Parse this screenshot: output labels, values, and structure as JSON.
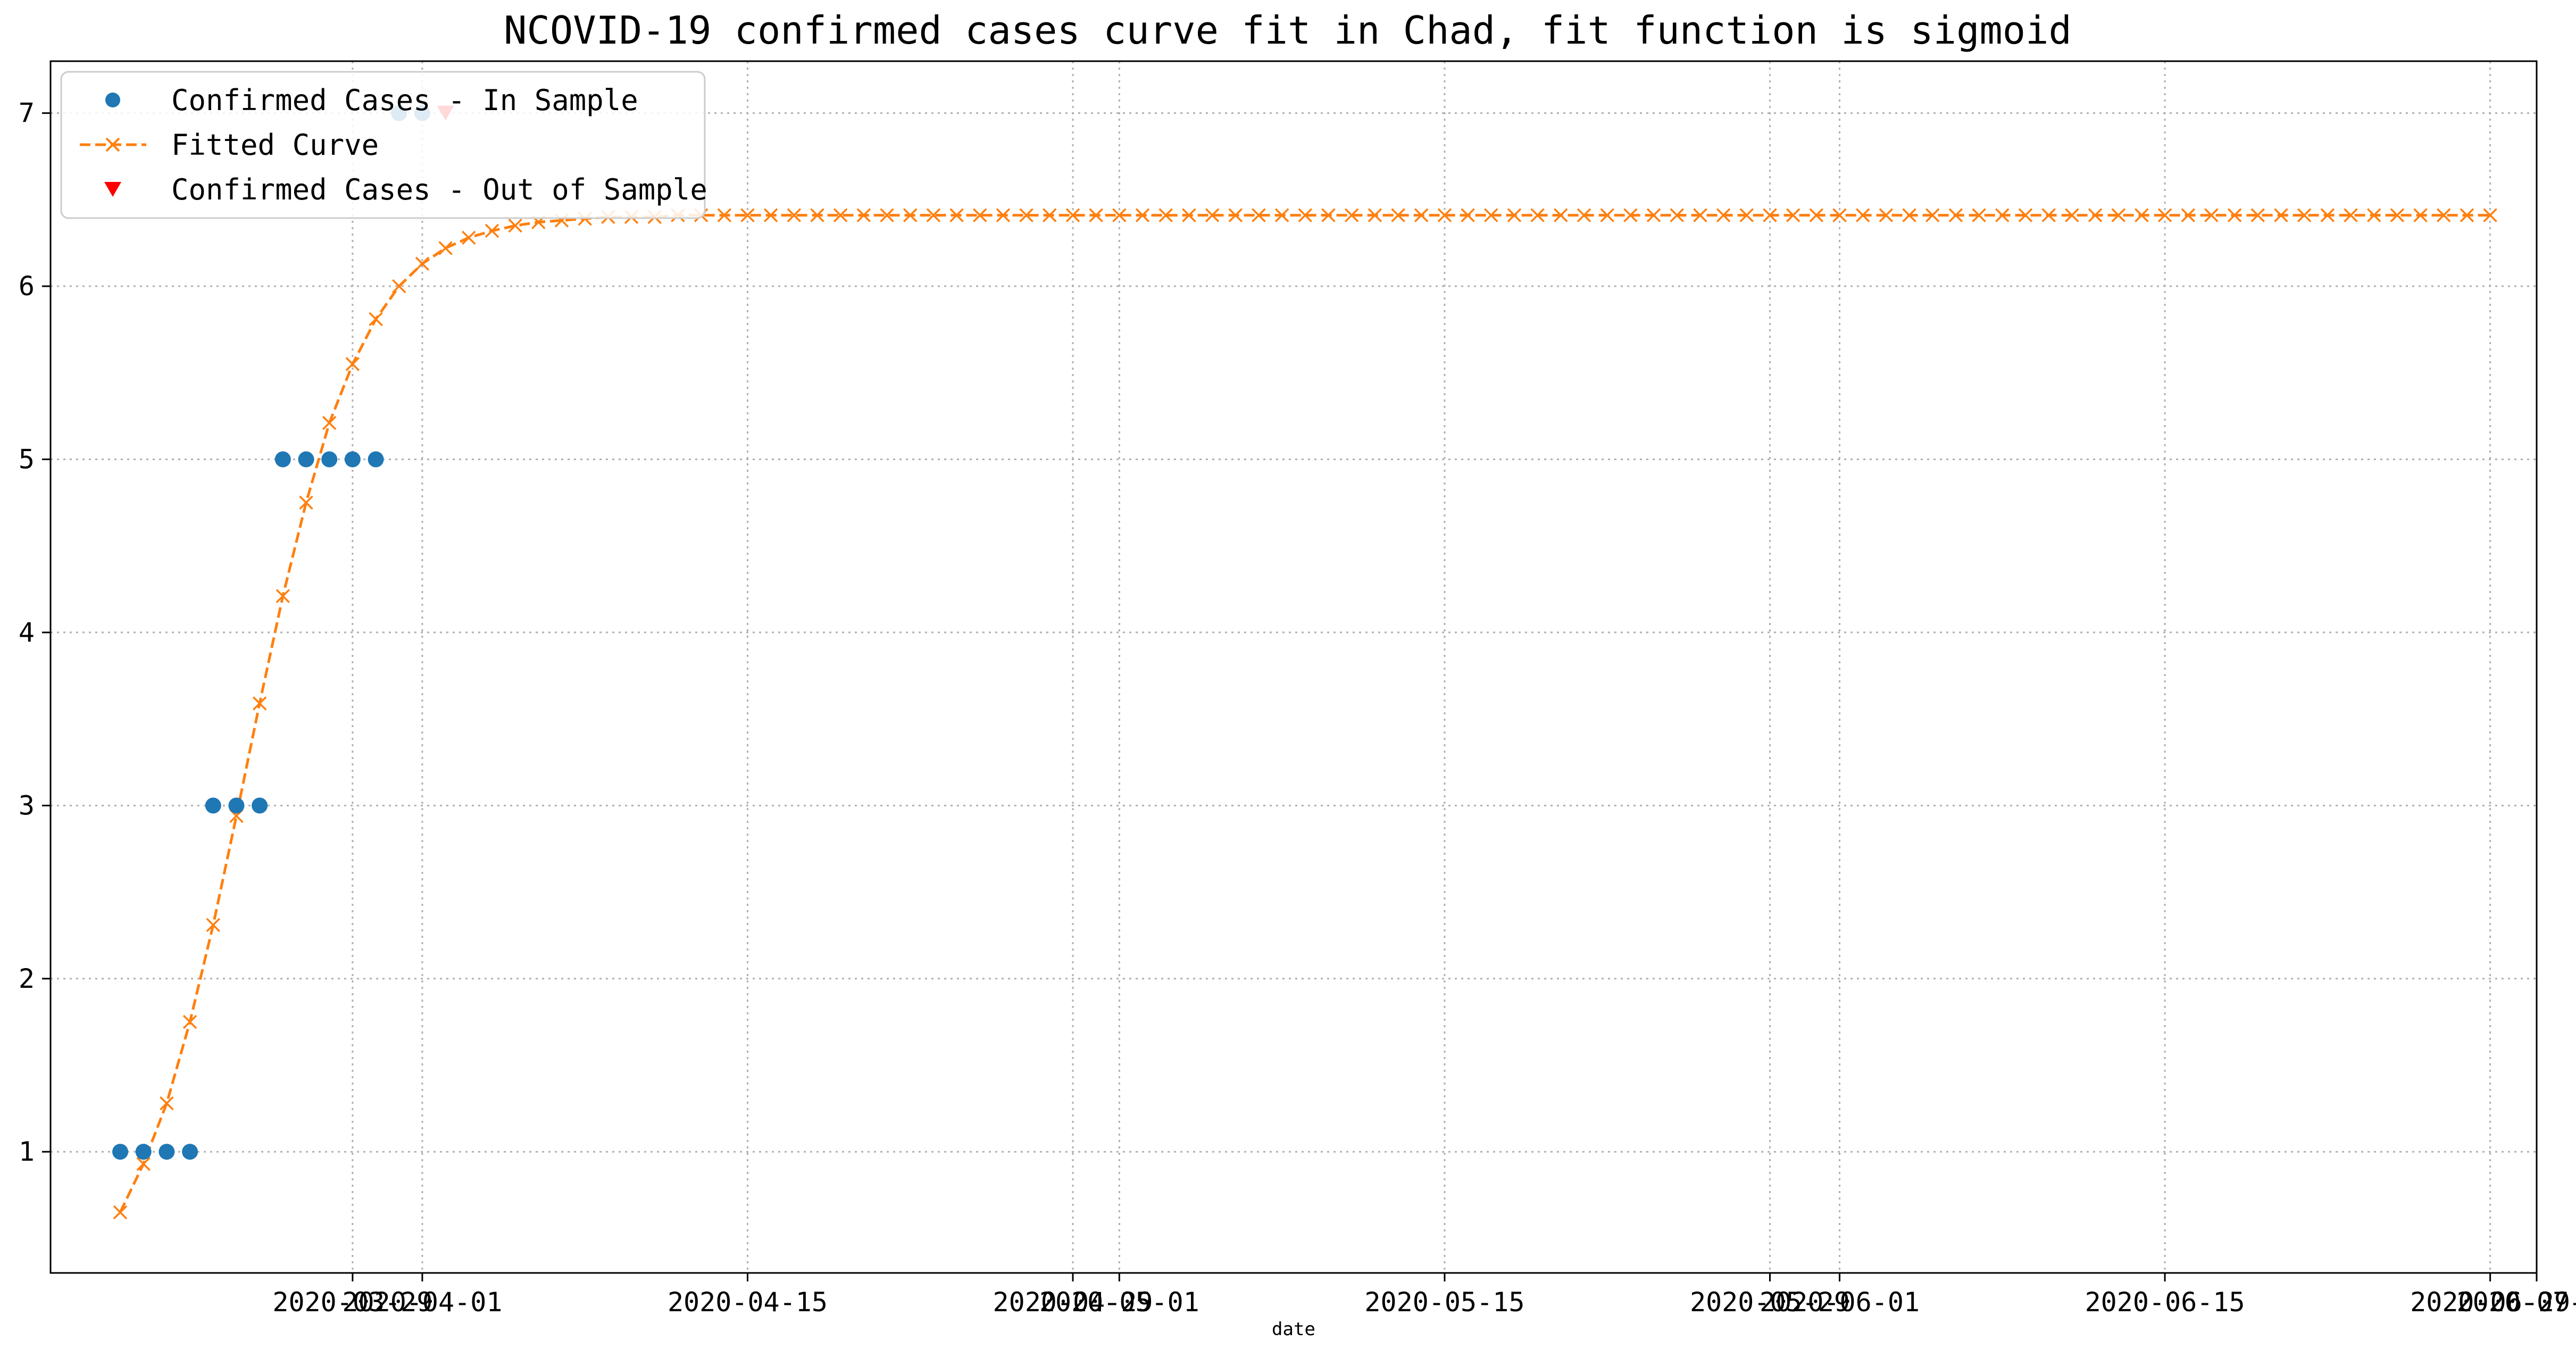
{
  "chart_data": {
    "type": "line",
    "title": "NCOVID-19 confirmed cases curve fit in Chad, fit function is sigmoid",
    "xlabel": "date",
    "ylabel": "",
    "x_ticks": [
      "2020-03-29",
      "2020-04-01",
      "2020-04-15",
      "2020-04-29",
      "2020-05-01",
      "2020-05-15",
      "2020-05-29",
      "2020-06-01",
      "2020-06-15",
      "2020-06-29",
      "2020-07-01"
    ],
    "y_ticks": [
      1,
      2,
      3,
      4,
      5,
      6,
      7
    ],
    "xlim": [
      "2020-03-16",
      "2020-07-01"
    ],
    "ylim": [
      0.3,
      7.3
    ],
    "grid": true,
    "legend_position": "top-left",
    "colors": {
      "in_sample": "#1f77b4",
      "fitted": "#ff7f0e",
      "out_sample": "#ff0000"
    },
    "series": [
      {
        "name": "Confirmed Cases - In Sample",
        "style": "markers-circle",
        "x": [
          "2020-03-19",
          "2020-03-20",
          "2020-03-21",
          "2020-03-22",
          "2020-03-23",
          "2020-03-24",
          "2020-03-25",
          "2020-03-26",
          "2020-03-27",
          "2020-03-28",
          "2020-03-29",
          "2020-03-30",
          "2020-03-31",
          "2020-04-01"
        ],
        "y": [
          1,
          1,
          1,
          1,
          3,
          3,
          3,
          5,
          5,
          5,
          5,
          5,
          7,
          7
        ]
      },
      {
        "name": "Fitted Curve",
        "style": "dashed-x",
        "x_start": "2020-03-19",
        "x_end": "2020-06-29",
        "y": [
          0.65,
          0.93,
          1.28,
          1.75,
          2.31,
          2.94,
          3.59,
          4.21,
          4.75,
          5.21,
          5.55,
          5.81,
          6.0,
          6.13,
          6.22,
          6.28,
          6.32,
          6.35,
          6.37,
          6.38,
          6.39,
          6.4,
          6.4,
          6.4,
          6.41,
          6.41
        ]
      },
      {
        "name": "Confirmed Cases - Out of Sample",
        "style": "markers-triangle-down",
        "x": [
          "2020-04-02"
        ],
        "y": [
          7
        ]
      }
    ]
  }
}
